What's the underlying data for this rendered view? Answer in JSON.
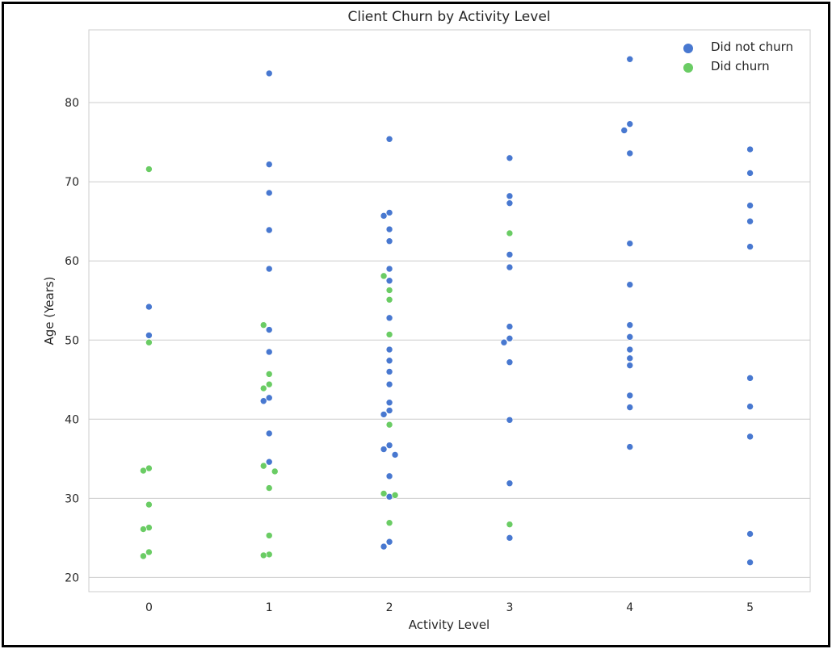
{
  "chart_data": {
    "type": "scatter",
    "title": "Client Churn by Activity Level",
    "xlabel": "Activity Level",
    "ylabel": "Age (Years)",
    "x_ticks": [
      "0",
      "1",
      "2",
      "3",
      "4",
      "5"
    ],
    "y_ticks": [
      20,
      30,
      40,
      50,
      60,
      70,
      80
    ],
    "xlim": [
      -0.5,
      5.5
    ],
    "ylim": [
      18.2,
      89.2
    ],
    "grid": "horizontal",
    "legend_position": "top-right",
    "colors": {
      "did_not_churn": "#4878d0",
      "did_churn": "#6acc64"
    },
    "series": [
      {
        "name": "Did not churn",
        "points": [
          [
            0,
            54.2
          ],
          [
            0,
            50.6
          ],
          [
            1,
            83.7
          ],
          [
            1,
            72.2
          ],
          [
            1,
            68.6
          ],
          [
            1,
            63.9
          ],
          [
            1,
            59.0
          ],
          [
            1,
            51.3
          ],
          [
            1,
            48.5
          ],
          [
            1,
            42.7
          ],
          [
            1,
            42.3
          ],
          [
            1,
            38.2
          ],
          [
            1,
            34.6
          ],
          [
            2,
            75.4
          ],
          [
            2,
            66.1
          ],
          [
            2,
            65.7
          ],
          [
            2,
            64.0
          ],
          [
            2,
            62.5
          ],
          [
            2,
            59.0
          ],
          [
            2,
            57.5
          ],
          [
            2,
            52.8
          ],
          [
            2,
            48.8
          ],
          [
            2,
            47.4
          ],
          [
            2,
            46.0
          ],
          [
            2,
            44.4
          ],
          [
            2,
            42.1
          ],
          [
            2,
            41.1
          ],
          [
            2,
            40.6
          ],
          [
            2,
            36.7
          ],
          [
            2,
            36.2
          ],
          [
            2,
            35.5
          ],
          [
            2,
            32.8
          ],
          [
            2,
            30.2
          ],
          [
            2,
            24.5
          ],
          [
            2,
            23.9
          ],
          [
            3,
            73.0
          ],
          [
            3,
            68.2
          ],
          [
            3,
            67.3
          ],
          [
            3,
            60.8
          ],
          [
            3,
            59.2
          ],
          [
            3,
            51.7
          ],
          [
            3,
            50.2
          ],
          [
            3,
            49.7
          ],
          [
            3,
            47.2
          ],
          [
            3,
            39.9
          ],
          [
            3,
            31.9
          ],
          [
            3,
            25.0
          ],
          [
            4,
            85.5
          ],
          [
            4,
            77.3
          ],
          [
            4,
            76.5
          ],
          [
            4,
            73.6
          ],
          [
            4,
            62.2
          ],
          [
            4,
            57.0
          ],
          [
            4,
            51.9
          ],
          [
            4,
            50.4
          ],
          [
            4,
            48.8
          ],
          [
            4,
            47.7
          ],
          [
            4,
            46.8
          ],
          [
            4,
            43.0
          ],
          [
            4,
            41.5
          ],
          [
            4,
            36.5
          ],
          [
            5,
            74.1
          ],
          [
            5,
            71.1
          ],
          [
            5,
            67.0
          ],
          [
            5,
            65.0
          ],
          [
            5,
            61.8
          ],
          [
            5,
            45.2
          ],
          [
            5,
            41.6
          ],
          [
            5,
            37.8
          ],
          [
            5,
            25.5
          ],
          [
            5,
            21.9
          ]
        ]
      },
      {
        "name": "Did churn",
        "points": [
          [
            0,
            71.6
          ],
          [
            0,
            49.7
          ],
          [
            0,
            33.8
          ],
          [
            0,
            33.5
          ],
          [
            0,
            29.2
          ],
          [
            0,
            26.3
          ],
          [
            0,
            26.1
          ],
          [
            0,
            23.2
          ],
          [
            0,
            22.7
          ],
          [
            1,
            51.9
          ],
          [
            1,
            45.7
          ],
          [
            1,
            44.4
          ],
          [
            1,
            43.9
          ],
          [
            1,
            34.1
          ],
          [
            1,
            33.4
          ],
          [
            1,
            31.3
          ],
          [
            1,
            25.3
          ],
          [
            1,
            22.9
          ],
          [
            1,
            22.8
          ],
          [
            2,
            58.1
          ],
          [
            2,
            56.3
          ],
          [
            2,
            55.1
          ],
          [
            2,
            50.7
          ],
          [
            2,
            39.3
          ],
          [
            2,
            30.6
          ],
          [
            2,
            30.4
          ],
          [
            2,
            26.9
          ],
          [
            3,
            63.5
          ],
          [
            3,
            26.7
          ]
        ]
      }
    ]
  }
}
